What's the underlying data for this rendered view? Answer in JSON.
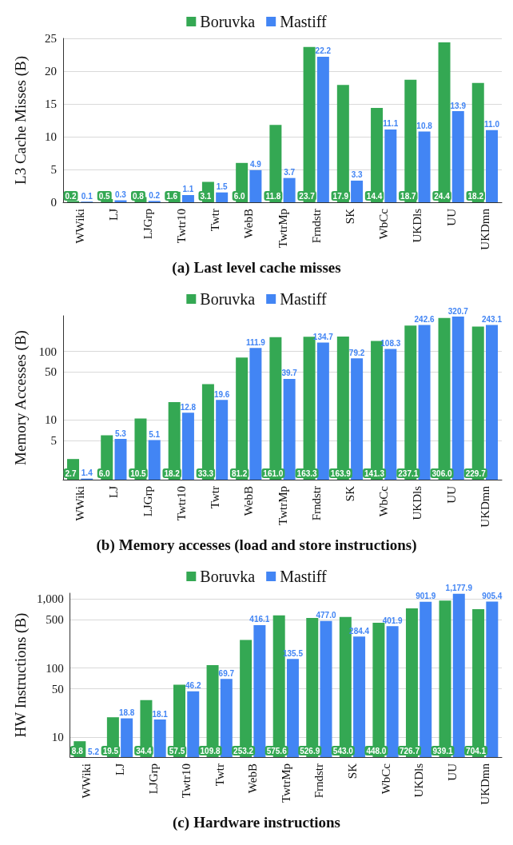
{
  "chart_data": [
    {
      "type": "bar",
      "title": "(a) Last level cache misses",
      "ylabel": "L3 Cache Misses (B)",
      "legend": "top",
      "grid": "y",
      "categories": [
        "WWiki",
        "LJ",
        "LJGrp",
        "Twtr10",
        "Twtr",
        "WebB",
        "TwtrMp",
        "Frndstr",
        "SK",
        "WbCc",
        "UKDls",
        "UU",
        "UKDmn"
      ],
      "ylim": [
        0,
        25
      ],
      "yticks": [
        0,
        5,
        10,
        15,
        20,
        25
      ],
      "series": [
        {
          "name": "Boruvka",
          "color": "#34a853",
          "values": [
            0.2,
            0.5,
            0.8,
            1.6,
            3.1,
            6.0,
            11.8,
            23.7,
            17.9,
            14.4,
            18.7,
            24.4,
            18.2
          ],
          "value_labels": [
            "0.2",
            "0.5",
            "0.8",
            "1.6",
            "3.1",
            "6.0",
            "11.8",
            "23.7",
            "17.9",
            "14.4",
            "18.7",
            "24.4",
            "18.2"
          ]
        },
        {
          "name": "Mastiff",
          "color": "#4285f4",
          "values": [
            0.1,
            0.3,
            0.2,
            1.1,
            1.5,
            4.9,
            3.7,
            22.2,
            3.3,
            11.1,
            10.8,
            13.9,
            11.0
          ],
          "value_labels": [
            "0.1",
            "0.3",
            "0.2",
            "1.1",
            "1.5",
            "4.9",
            "3.7",
            "22.2",
            "3.3",
            "11.1",
            "10.8",
            "13.9",
            "11.0"
          ]
        }
      ]
    },
    {
      "type": "bar",
      "title": "(b) Memory accesses (load and store instructions)",
      "ylabel": "Memory Accesses (B)",
      "legend": "top",
      "grid": "y",
      "log": true,
      "categories": [
        "WWiki",
        "LJ",
        "LJGrp",
        "Twtr10",
        "Twtr",
        "WebB",
        "TwtrMp",
        "Frndstr",
        "SK",
        "WbCc",
        "UKDls",
        "UU",
        "UKDmn"
      ],
      "ylim": [
        1.35,
        330
      ],
      "yticks": [
        5,
        10,
        50,
        100
      ],
      "series": [
        {
          "name": "Boruvka",
          "color": "#34a853",
          "values": [
            2.7,
            6.0,
            10.5,
            18.2,
            33.3,
            81.2,
            161.0,
            163.3,
            163.9,
            141.3,
            237.1,
            306.0,
            229.7
          ],
          "value_labels": [
            "2.7",
            "6.0",
            "10.5",
            "18.2",
            "33.3",
            "81.2",
            "161.0",
            "163.3",
            "163.9",
            "141.3",
            "237.1",
            "306.0",
            "229.7"
          ]
        },
        {
          "name": "Mastiff",
          "color": "#4285f4",
          "values": [
            1.4,
            5.3,
            5.1,
            12.8,
            19.6,
            111.9,
            39.7,
            134.7,
            79.2,
            108.3,
            242.6,
            320.7,
            243.1
          ],
          "value_labels": [
            "1.4",
            "5.3",
            "5.1",
            "12.8",
            "19.6",
            "111.9",
            "39.7",
            "134.7",
            "79.2",
            "108.3",
            "242.6",
            "320.7",
            "243.1"
          ]
        }
      ]
    },
    {
      "type": "bar",
      "title": "(c) Hardware instructions",
      "ylabel": "HW Instructions (B)",
      "legend": "top",
      "grid": "y",
      "log": true,
      "categories": [
        "WWiki",
        "LJ",
        "LJGrp",
        "Twtr10",
        "Twtr",
        "WebB",
        "TwtrMp",
        "Frndstr",
        "SK",
        "WbCc",
        "UKDls",
        "UU",
        "UKDmn"
      ],
      "ylim": [
        5.2,
        1200
      ],
      "yticks": [
        10,
        50,
        100,
        500,
        {
          "value": 1000,
          "label": "1,000"
        }
      ],
      "series": [
        {
          "name": "Boruvka",
          "color": "#34a853",
          "values": [
            8.8,
            19.5,
            34.4,
            57.5,
            109.8,
            253.2,
            575.6,
            526.9,
            543.0,
            448.0,
            726.7,
            939.1,
            704.1
          ],
          "value_labels": [
            "8.8",
            "19.5",
            "34.4",
            "57.5",
            "109.8",
            "253.2",
            "575.6",
            "526.9",
            "543.0",
            "448.0",
            "726.7",
            "939.1",
            "704.1"
          ]
        },
        {
          "name": "Mastiff",
          "color": "#4285f4",
          "values": [
            5.2,
            18.8,
            18.1,
            46.2,
            69.7,
            416.1,
            135.5,
            477.0,
            284.4,
            401.9,
            901.9,
            1177.9,
            905.4
          ],
          "value_labels": [
            "5.2",
            "18.8",
            "18.1",
            "46.2",
            "69.7",
            "416.1",
            "135.5",
            "477.0",
            "284.4",
            "401.9",
            "901.9",
            "1,177.9",
            "905.4"
          ]
        }
      ]
    }
  ]
}
